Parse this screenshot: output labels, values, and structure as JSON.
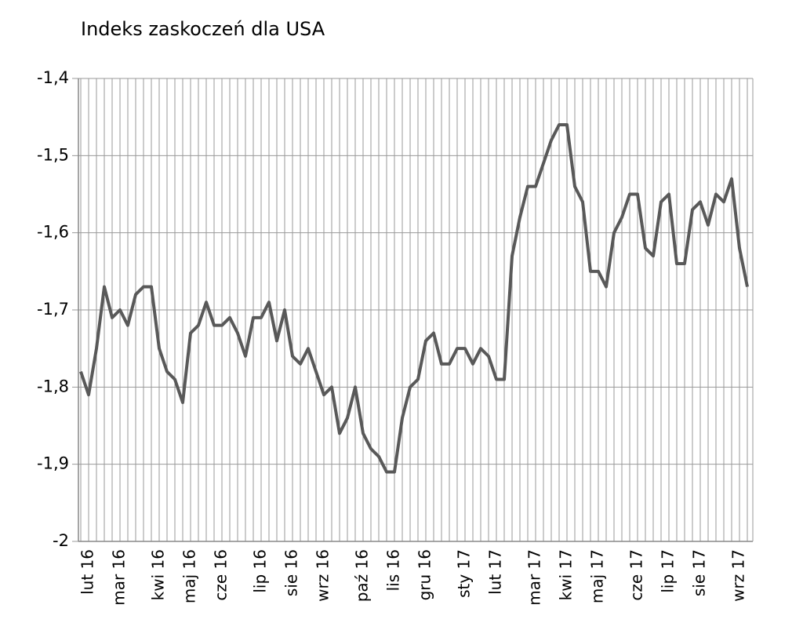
{
  "chart_data": {
    "type": "line",
    "title": "Indeks zaskoczeń dla USA",
    "categories": [
      null,
      "lut 16",
      null,
      null,
      null,
      "mar 16",
      null,
      null,
      null,
      null,
      "kwi 16",
      null,
      null,
      null,
      "maj 16",
      null,
      null,
      null,
      "cze 16",
      null,
      null,
      null,
      null,
      "lip 16",
      null,
      null,
      null,
      "sie 16",
      null,
      null,
      null,
      "wrz 16",
      null,
      null,
      null,
      null,
      "paź 16",
      null,
      null,
      null,
      "lis 16",
      null,
      null,
      null,
      "gru 16",
      null,
      null,
      null,
      null,
      "sty 17",
      null,
      null,
      null,
      "lut 17",
      null,
      null,
      null,
      null,
      "mar 17",
      null,
      null,
      null,
      "kwi 17",
      null,
      null,
      null,
      "maj 17",
      null,
      null,
      null,
      null,
      "cze 17",
      null,
      null,
      null,
      "lip 17",
      null,
      null,
      null,
      "sie 17",
      null,
      null,
      null,
      null,
      "wrz 17",
      null
    ],
    "values": [
      -1.78,
      -1.81,
      -1.75,
      -1.67,
      -1.71,
      -1.7,
      -1.72,
      -1.68,
      -1.67,
      -1.67,
      -1.75,
      -1.78,
      -1.79,
      -1.82,
      -1.73,
      -1.72,
      -1.69,
      -1.72,
      -1.72,
      -1.71,
      -1.73,
      -1.76,
      -1.71,
      -1.71,
      -1.69,
      -1.74,
      -1.7,
      -1.76,
      -1.77,
      -1.75,
      -1.78,
      -1.81,
      -1.8,
      -1.86,
      -1.84,
      -1.8,
      -1.86,
      -1.88,
      -1.89,
      -1.91,
      -1.91,
      -1.84,
      -1.8,
      -1.79,
      -1.74,
      -1.73,
      -1.77,
      -1.77,
      -1.75,
      -1.75,
      -1.77,
      -1.75,
      -1.76,
      -1.79,
      -1.79,
      -1.63,
      -1.58,
      -1.54,
      -1.54,
      -1.51,
      -1.48,
      -1.46,
      -1.46,
      -1.54,
      -1.56,
      -1.65,
      -1.65,
      -1.67,
      -1.6,
      -1.58,
      -1.55,
      -1.55,
      -1.62,
      -1.63,
      -1.56,
      -1.55,
      -1.64,
      -1.64,
      -1.57,
      -1.56,
      -1.59,
      -1.55,
      -1.56,
      -1.53,
      -1.62,
      -1.67
    ],
    "color": "#595959",
    "ylim": [
      -2,
      -1.4
    ],
    "yticks": [
      -2,
      {
        "value": -1.9,
        "label": "-1,9"
      },
      {
        "value": -1.8,
        "label": "-1,8"
      },
      {
        "value": -1.7,
        "label": "-1,7"
      },
      {
        "value": -1.6,
        "label": "-1,6"
      },
      {
        "value": -1.5,
        "label": "-1,5"
      },
      {
        "value": -1.4,
        "label": "-1,4"
      }
    ],
    "grid": true
  }
}
